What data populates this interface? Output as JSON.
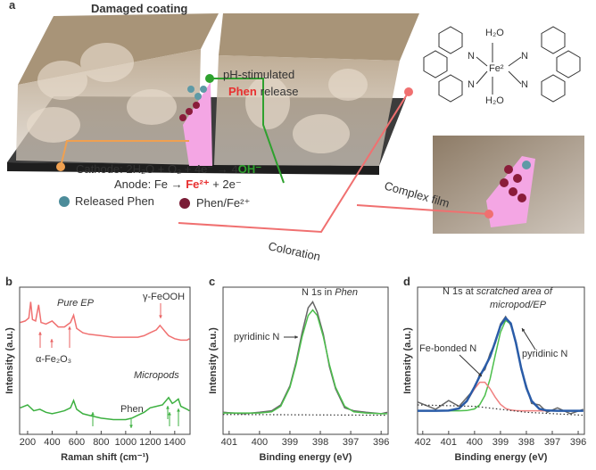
{
  "panel_a": {
    "label": "a",
    "title": "Damaged coating",
    "stimulus": [
      "pH-stimulated",
      "Phen",
      "release"
    ],
    "cathode": [
      "Cathode: 2H₂O + O₂ + 4e⁻ → 4",
      "OH⁻"
    ],
    "anode": [
      "Anode: Fe → ",
      "Fe²⁺",
      " + 2e⁻"
    ],
    "legend": [
      "Released Phen",
      "Phen/Fe²⁺"
    ],
    "complex_film": "Complex film",
    "coloration": "Coloration",
    "structure": {
      "water": [
        "H₂O",
        "H₂O"
      ],
      "metal": "Fe²",
      "nitrogen": [
        "N",
        "N",
        "N",
        "N"
      ]
    }
  },
  "chart_data": [
    {
      "type": "line",
      "panel_label": "b",
      "x_label": "Raman shift (cm⁻¹)",
      "y_label": "Intensity (a.u.)",
      "xlim": [
        135,
        1525
      ],
      "xticks": [
        200,
        400,
        600,
        800,
        1000,
        1200,
        1400
      ],
      "ylim": [
        0,
        10
      ],
      "series": [
        {
          "name": "Pure EP",
          "color": "#f07070",
          "x": [
            140,
            180,
            210,
            225,
            240,
            265,
            290,
            310,
            350,
            400,
            450,
            500,
            550,
            575,
            600,
            650,
            700,
            800,
            900,
            1000,
            1100,
            1150,
            1200,
            1250,
            1280,
            1300,
            1320,
            1350,
            1400,
            1450,
            1500,
            1520
          ],
          "values": [
            7.6,
            7.7,
            7.9,
            9.0,
            7.8,
            7.7,
            8.8,
            7.6,
            7.5,
            7.7,
            7.3,
            7.3,
            7.6,
            8.1,
            7.2,
            6.9,
            6.8,
            6.7,
            6.6,
            6.6,
            6.6,
            6.7,
            6.9,
            7.1,
            7.4,
            7.2,
            7.0,
            6.7,
            6.5,
            6.4,
            6.4,
            6.5
          ]
        },
        {
          "name": "Micropods",
          "color": "#3cb040",
          "x": [
            140,
            200,
            250,
            300,
            350,
            400,
            450,
            500,
            550,
            575,
            600,
            650,
            700,
            800,
            900,
            1000,
            1050,
            1100,
            1150,
            1200,
            1250,
            1300,
            1350,
            1380,
            1400,
            1430,
            1450,
            1500,
            1520
          ],
          "values": [
            1.8,
            2.0,
            1.6,
            1.7,
            1.5,
            1.4,
            1.5,
            1.6,
            1.8,
            2.3,
            1.7,
            1.4,
            1.3,
            1.1,
            1.0,
            1.0,
            1.1,
            1.3,
            1.5,
            1.8,
            1.9,
            2.0,
            2.5,
            2.1,
            2.2,
            2.4,
            1.9,
            1.7,
            1.6
          ]
        }
      ],
      "annotations": [
        {
          "text": "Pure EP",
          "color": "#333333",
          "italic": true
        },
        {
          "text": "γ-FeOOH",
          "color": "#e86060"
        },
        {
          "text": "α-Fe₂O₃",
          "color": "#e86060"
        },
        {
          "text": "Micropods",
          "color": "#333333",
          "italic": true
        },
        {
          "text": "Phen",
          "color": "#3cb040"
        }
      ]
    },
    {
      "type": "line",
      "panel_label": "c",
      "title": [
        "N 1s in ",
        "Phen"
      ],
      "x_label": "Binding energy (eV)",
      "y_label": "Intensity (a.u.)",
      "xlim": [
        401.2,
        395.77
      ],
      "xticks": [
        401,
        400,
        399,
        398,
        397,
        396
      ],
      "ylim": [
        0,
        10
      ],
      "series": [
        {
          "color": "#666666",
          "style": "solid",
          "x": [
            401.2,
            400.5,
            400,
            399.6,
            399.3,
            399.0,
            398.8,
            398.6,
            398.4,
            398.25,
            398.1,
            397.9,
            397.7,
            397.5,
            397.2,
            396.9,
            396.5,
            396,
            395.8
          ],
          "values": [
            1.5,
            1.4,
            1.5,
            1.6,
            2.0,
            3.3,
            4.9,
            6.9,
            8.6,
            9.0,
            8.3,
            6.8,
            4.6,
            3.1,
            1.8,
            1.6,
            1.5,
            1.4,
            1.5
          ]
        },
        {
          "color": "#4cbf4c",
          "style": "solid",
          "x": [
            401.2,
            400.5,
            400,
            399.6,
            399.3,
            399.0,
            398.8,
            398.6,
            398.4,
            398.25,
            398.1,
            397.9,
            397.7,
            397.5,
            397.2,
            396.9,
            396.5,
            396,
            395.8
          ],
          "values": [
            1.45,
            1.45,
            1.45,
            1.53,
            1.91,
            3.2,
            4.74,
            6.63,
            8.07,
            8.45,
            8.07,
            6.63,
            4.74,
            3.2,
            1.91,
            1.53,
            1.45,
            1.4,
            1.4
          ]
        },
        {
          "color": "#333333",
          "style": "dotted",
          "x": [
            401.2,
            395.8
          ],
          "values": [
            1.35,
            1.3
          ]
        }
      ],
      "annotations": [
        {
          "text": "pyridinic N",
          "color": "#333333"
        }
      ]
    },
    {
      "type": "line",
      "panel_label": "d",
      "title": [
        "N 1s at ",
        "scratched area of",
        "micropod/EP"
      ],
      "x_label": "Binding energy (eV)",
      "y_label": "Intensity (a.u.)",
      "xlim": [
        402.2,
        395.76
      ],
      "xticks": [
        402,
        401,
        400,
        399,
        398,
        397,
        396
      ],
      "ylim": [
        0,
        10
      ],
      "series": [
        {
          "color": "#666666",
          "style": "solid",
          "x": [
            402.2,
            401.5,
            401,
            400.6,
            400.3,
            400,
            399.8,
            399.6,
            399.4,
            399.2,
            399,
            398.8,
            398.6,
            398.4,
            398.2,
            398,
            397.8,
            397.5,
            397.2,
            396.8,
            396.3,
            395.8
          ],
          "values": [
            2.2,
            1.7,
            2.3,
            1.9,
            2.5,
            3.1,
            4.1,
            4.4,
            5.5,
            6.2,
            7.5,
            8.0,
            7.4,
            6.3,
            4.4,
            3.3,
            2.1,
            2.0,
            1.5,
            1.8,
            1.4,
            1.7
          ]
        },
        {
          "color": "#4cbf4c",
          "style": "solid",
          "x": [
            402.2,
            401.5,
            401,
            400.6,
            400.3,
            400,
            399.8,
            399.6,
            399.4,
            399.2,
            399,
            398.8,
            398.6,
            398.4,
            398.2,
            398,
            397.8,
            397.5,
            397.2,
            396.8,
            396.3,
            395.8
          ],
          "values": [
            1.6,
            1.6,
            1.6,
            1.6,
            1.62,
            1.73,
            2.01,
            2.64,
            3.77,
            5.38,
            6.93,
            7.74,
            7.49,
            6.19,
            4.51,
            3.15,
            2.27,
            1.73,
            1.62,
            1.6,
            1.6,
            1.6
          ]
        },
        {
          "color": "#f08080",
          "style": "solid",
          "x": [
            402.2,
            401.5,
            401,
            400.6,
            400.3,
            400,
            399.8,
            399.6,
            399.4,
            399.2,
            399,
            398.8,
            398.6,
            398.4,
            398.2,
            398,
            397.8,
            397.5,
            397.2,
            396.8,
            396.3,
            395.8
          ],
          "values": [
            1.6,
            1.6,
            1.61,
            1.76,
            2.24,
            3.1,
            3.54,
            3.54,
            3.1,
            2.52,
            2.04,
            1.76,
            1.65,
            1.61,
            1.6,
            1.6,
            1.6,
            1.6,
            1.6,
            1.6,
            1.6,
            1.6
          ]
        },
        {
          "color": "#2a5ca8",
          "style": "thick",
          "x": [
            402.2,
            401.5,
            401,
            400.6,
            400.3,
            400,
            399.8,
            399.6,
            399.4,
            399.2,
            399,
            398.8,
            398.6,
            398.4,
            398.2,
            398,
            397.8,
            397.5,
            397.2,
            396.8,
            396.3,
            395.8
          ],
          "values": [
            1.6,
            1.6,
            1.61,
            1.76,
            2.26,
            3.23,
            3.95,
            4.58,
            5.27,
            6.3,
            7.37,
            7.9,
            7.54,
            6.2,
            4.51,
            3.15,
            2.27,
            1.73,
            1.62,
            1.6,
            1.6,
            1.6
          ]
        },
        {
          "color": "#333333",
          "style": "dotted",
          "x": [
            402.2,
            400,
            398,
            395.8
          ],
          "values": [
            2.0,
            1.9,
            1.5,
            1.3
          ]
        }
      ],
      "annotations": [
        {
          "text": "Fe-bonded N",
          "color": "#333333"
        },
        {
          "text": "pyridinic N",
          "color": "#333333"
        }
      ]
    }
  ]
}
